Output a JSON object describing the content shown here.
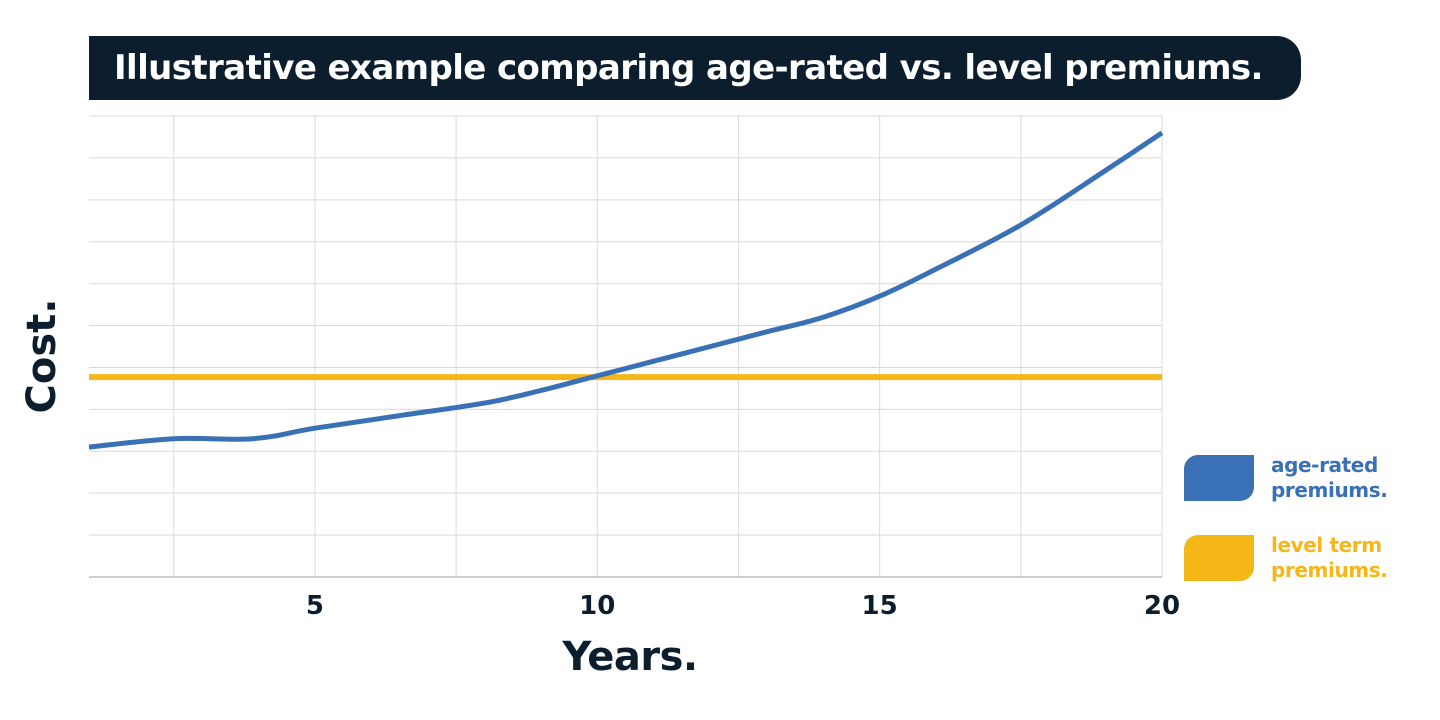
{
  "chart_data": {
    "type": "line",
    "title": "Illustrative example comparing age-rated vs. level premiums.",
    "xlabel": "Years.",
    "ylabel": "Cost.",
    "x_ticks": [
      5,
      10,
      15,
      20
    ],
    "xlim": [
      1,
      20
    ],
    "ylim": [
      0,
      11
    ],
    "grid": true,
    "legend_position": "bottom-right",
    "series": [
      {
        "name": "age-rated premiums.",
        "color": "#3a70b5",
        "x": [
          1,
          2.5,
          3.9,
          5,
          6.5,
          8,
          9,
          10,
          11,
          12,
          13,
          14,
          15,
          16,
          17.5,
          19,
          20
        ],
        "y": [
          3.1,
          3.3,
          3.3,
          3.55,
          3.85,
          4.15,
          4.45,
          4.8,
          5.15,
          5.5,
          5.85,
          6.2,
          6.7,
          7.35,
          8.4,
          9.7,
          10.6
        ]
      },
      {
        "name": "level term premiums.",
        "color": "#f5b718",
        "x": [
          1,
          20
        ],
        "y": [
          4.77,
          4.77
        ]
      }
    ]
  }
}
